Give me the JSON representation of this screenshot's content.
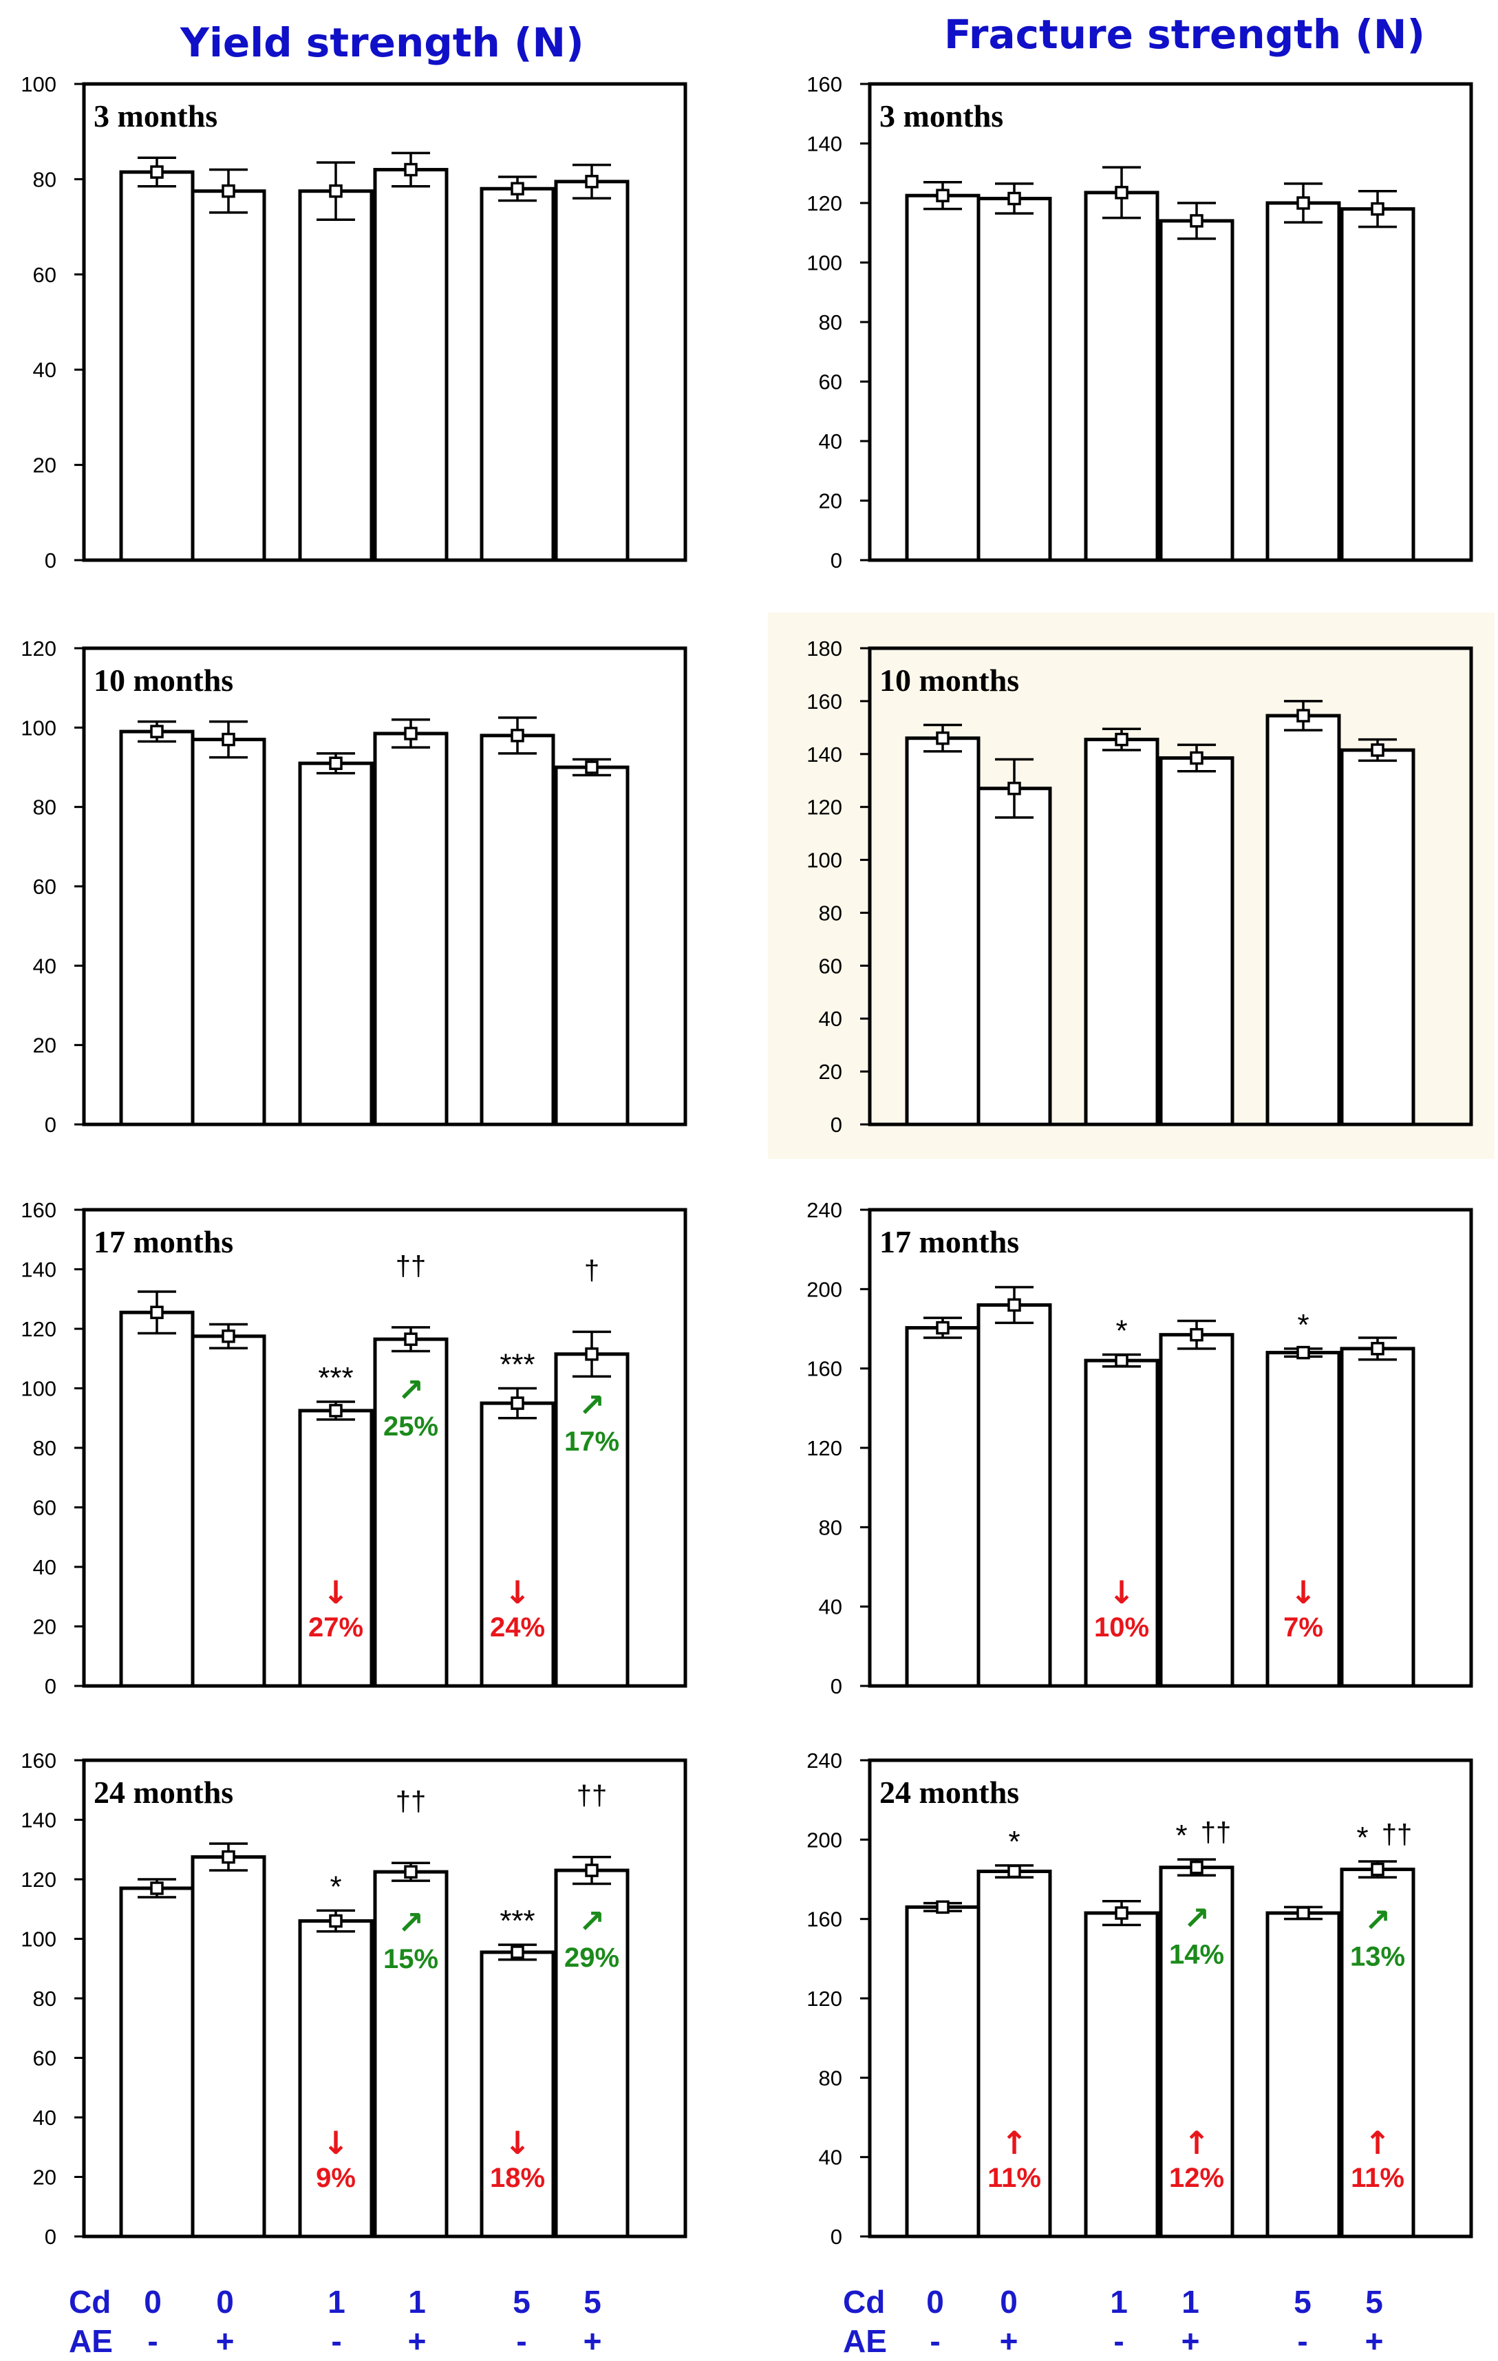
{
  "column_titles": {
    "left": "Yield strength (N)",
    "right": "Fracture strength (N)"
  },
  "x_axis_groups": {
    "row1_label": "Cd",
    "row1_values": [
      "0",
      "0",
      "1",
      "1",
      "5",
      "5"
    ],
    "row2_label": "AE",
    "row2_values": [
      "-",
      "+",
      "-",
      "+",
      "-",
      "+"
    ]
  },
  "colors": {
    "title": "#1010c8",
    "axis_labels": "#1a1acc",
    "decrease": "#e8161b",
    "increase_green": "#1b8a1b",
    "highlight_panel_bg": "#fdf8ec",
    "bar_fill": "#ffffff",
    "stroke": "#000000"
  },
  "chart_data": [
    {
      "type": "bar",
      "panel": "yield-3",
      "title": "3 months",
      "ylabel": "Yield strength (N)",
      "ylim": [
        0,
        100
      ],
      "yticks": [
        0,
        20,
        40,
        60,
        80,
        100
      ],
      "categories": [
        "Cd0 AE-",
        "Cd0 AE+",
        "Cd1 AE-",
        "Cd1 AE+",
        "Cd5 AE-",
        "Cd5 AE+"
      ],
      "values": [
        81.5,
        77.5,
        77.5,
        82,
        78,
        79.5
      ],
      "errors": [
        3,
        4.5,
        6,
        3.5,
        2.5,
        3.5
      ],
      "stars": [
        "",
        "",
        "",
        "",
        "",
        ""
      ],
      "daggers": [
        "",
        "",
        "",
        "",
        "",
        ""
      ],
      "annotations": []
    },
    {
      "type": "bar",
      "panel": "fracture-3",
      "title": "3 months",
      "ylabel": "Fracture strength (N)",
      "ylim": [
        0,
        160
      ],
      "yticks": [
        0,
        20,
        40,
        60,
        80,
        100,
        120,
        140,
        160
      ],
      "categories": [
        "Cd0 AE-",
        "Cd0 AE+",
        "Cd1 AE-",
        "Cd1 AE+",
        "Cd5 AE-",
        "Cd5 AE+"
      ],
      "values": [
        122.5,
        121.5,
        123.5,
        114,
        120,
        118
      ],
      "errors": [
        4.5,
        5,
        8.5,
        6,
        6.5,
        6
      ],
      "stars": [
        "",
        "",
        "",
        "",
        "",
        ""
      ],
      "daggers": [
        "",
        "",
        "",
        "",
        "",
        ""
      ],
      "annotations": []
    },
    {
      "type": "bar",
      "panel": "yield-10",
      "title": "10 months",
      "ylabel": "Yield strength (N)",
      "ylim": [
        0,
        120
      ],
      "yticks": [
        0,
        20,
        40,
        60,
        80,
        100,
        120
      ],
      "categories": [
        "Cd0 AE-",
        "Cd0 AE+",
        "Cd1 AE-",
        "Cd1 AE+",
        "Cd5 AE-",
        "Cd5 AE+"
      ],
      "values": [
        99,
        97,
        91,
        98.5,
        98,
        90
      ],
      "errors": [
        2.5,
        4.5,
        2.5,
        3.5,
        4.5,
        2
      ],
      "stars": [
        "",
        "",
        "",
        "",
        "",
        ""
      ],
      "daggers": [
        "",
        "",
        "",
        "",
        "",
        ""
      ],
      "annotations": []
    },
    {
      "type": "bar",
      "panel": "fracture-10",
      "title": "10 months",
      "ylabel": "Fracture strength (N)",
      "ylim": [
        0,
        180
      ],
      "yticks": [
        0,
        20,
        40,
        60,
        80,
        100,
        120,
        140,
        160,
        180
      ],
      "categories": [
        "Cd0 AE-",
        "Cd0 AE+",
        "Cd1 AE-",
        "Cd1 AE+",
        "Cd5 AE-",
        "Cd5 AE+"
      ],
      "values": [
        146,
        127,
        145.5,
        138.5,
        154.5,
        141.5
      ],
      "errors": [
        5,
        11,
        4,
        5,
        5.5,
        4
      ],
      "stars": [
        "",
        "",
        "",
        "",
        "",
        ""
      ],
      "daggers": [
        "",
        "",
        "",
        "",
        "",
        ""
      ],
      "highlighted": true,
      "annotations": []
    },
    {
      "type": "bar",
      "panel": "yield-17",
      "title": "17 months",
      "ylabel": "Yield strength (N)",
      "ylim": [
        0,
        160
      ],
      "yticks": [
        0,
        20,
        40,
        60,
        80,
        100,
        120,
        140,
        160
      ],
      "categories": [
        "Cd0 AE-",
        "Cd0 AE+",
        "Cd1 AE-",
        "Cd1 AE+",
        "Cd5 AE-",
        "Cd5 AE+"
      ],
      "values": [
        125.5,
        117.5,
        92.5,
        116.5,
        95,
        111.5
      ],
      "errors": [
        7,
        4,
        3,
        4,
        5,
        7.5
      ],
      "stars": [
        "",
        "",
        "***",
        "",
        "***",
        ""
      ],
      "daggers": [
        "",
        "",
        "",
        "††",
        "",
        "†"
      ],
      "annotations": [
        {
          "bar": 2,
          "text": "27%",
          "arrow": "↓",
          "color": "red",
          "pos": "bottom"
        },
        {
          "bar": 4,
          "text": "24%",
          "arrow": "↓",
          "color": "red",
          "pos": "bottom"
        },
        {
          "bar": 3,
          "text": "25%",
          "arrow": "↗",
          "color": "green",
          "pos": "upper"
        },
        {
          "bar": 5,
          "text": "17%",
          "arrow": "↗",
          "color": "green",
          "pos": "upper"
        }
      ]
    },
    {
      "type": "bar",
      "panel": "fracture-17",
      "title": "17 months",
      "ylabel": "Fracture strength (N)",
      "ylim": [
        0,
        240
      ],
      "yticks": [
        0,
        40,
        80,
        120,
        160,
        200,
        240
      ],
      "categories": [
        "Cd0 AE-",
        "Cd0 AE+",
        "Cd1 AE-",
        "Cd1 AE+",
        "Cd5 AE-",
        "Cd5 AE+"
      ],
      "values": [
        180.5,
        192,
        164,
        177,
        168,
        170
      ],
      "errors": [
        5,
        9,
        3,
        7,
        2,
        5.5
      ],
      "stars": [
        "",
        "",
        "*",
        "",
        "*",
        ""
      ],
      "daggers": [
        "",
        "",
        "",
        "",
        "",
        ""
      ],
      "annotations": [
        {
          "bar": 2,
          "text": "10%",
          "arrow": "↓",
          "color": "red",
          "pos": "bottom"
        },
        {
          "bar": 4,
          "text": "7%",
          "arrow": "↓",
          "color": "red",
          "pos": "bottom"
        }
      ]
    },
    {
      "type": "bar",
      "panel": "yield-24",
      "title": "24 months",
      "ylabel": "Yield strength (N)",
      "ylim": [
        0,
        160
      ],
      "yticks": [
        0,
        20,
        40,
        60,
        80,
        100,
        120,
        140,
        160
      ],
      "categories": [
        "Cd0 AE-",
        "Cd0 AE+",
        "Cd1 AE-",
        "Cd1 AE+",
        "Cd5 AE-",
        "Cd5 AE+"
      ],
      "values": [
        117,
        127.5,
        106,
        122.5,
        95.5,
        123
      ],
      "errors": [
        3,
        4.5,
        3.5,
        3,
        2.5,
        4.5
      ],
      "stars": [
        "",
        "",
        "*",
        "",
        "***",
        ""
      ],
      "daggers": [
        "",
        "",
        "",
        "††",
        "",
        "††"
      ],
      "annotations": [
        {
          "bar": 2,
          "text": "9%",
          "arrow": "↓",
          "color": "red",
          "pos": "bottom"
        },
        {
          "bar": 4,
          "text": "18%",
          "arrow": "↓",
          "color": "red",
          "pos": "bottom"
        },
        {
          "bar": 3,
          "text": "15%",
          "arrow": "↗",
          "color": "green",
          "pos": "upper"
        },
        {
          "bar": 5,
          "text": "29%",
          "arrow": "↗",
          "color": "green",
          "pos": "upper"
        }
      ]
    },
    {
      "type": "bar",
      "panel": "fracture-24",
      "title": "24 months",
      "ylabel": "Fracture strength (N)",
      "ylim": [
        0,
        240
      ],
      "yticks": [
        0,
        40,
        80,
        120,
        160,
        200,
        240
      ],
      "categories": [
        "Cd0 AE-",
        "Cd0 AE+",
        "Cd1 AE-",
        "Cd1 AE+",
        "Cd5 AE-",
        "Cd5 AE+"
      ],
      "values": [
        166,
        184,
        163,
        186,
        163,
        185
      ],
      "errors": [
        2,
        3,
        6,
        4,
        3,
        4
      ],
      "stars": [
        "",
        "*",
        "",
        "*",
        "",
        "*"
      ],
      "daggers": [
        "",
        "",
        "",
        "††",
        "",
        "††"
      ],
      "annotations": [
        {
          "bar": 1,
          "text": "11%",
          "arrow": "↑",
          "color": "red",
          "pos": "bottom"
        },
        {
          "bar": 3,
          "text": "12%",
          "arrow": "↑",
          "color": "red",
          "pos": "bottom"
        },
        {
          "bar": 5,
          "text": "11%",
          "arrow": "↑",
          "color": "red",
          "pos": "bottom"
        },
        {
          "bar": 3,
          "text": "14%",
          "arrow": "↗",
          "color": "green",
          "pos": "upper"
        },
        {
          "bar": 5,
          "text": "13%",
          "arrow": "↗",
          "color": "green",
          "pos": "upper"
        }
      ]
    }
  ]
}
